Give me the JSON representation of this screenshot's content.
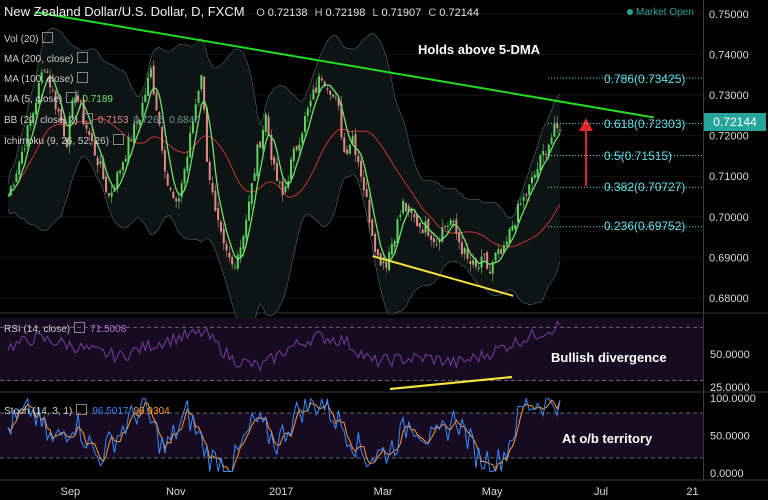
{
  "header": {
    "symbol": "New Zealand Dollar/U.S. Dollar, D, FXCM",
    "ohlc": {
      "o_label": "O",
      "o": "0.72138",
      "h_label": "H",
      "h": "0.72198",
      "l_label": "L",
      "l": "0.71907",
      "c_label": "C",
      "c": "0.72144"
    },
    "market_status": "Market Open"
  },
  "indicators": {
    "vol": "Vol (20)",
    "ma200": "MA (200, close)",
    "ma100": "MA (100, close)",
    "ma5": "MA (5, close)",
    "ma5_value": "0.7189",
    "bb": "BB (20, close, 2)",
    "bb_value": "0.7153",
    "bb_value2": "0.7265",
    "bb_value3": "0.6840",
    "ichimoku": "Ichimoku (9, 26, 52, 26)",
    "rsi": "RSI (14, close)",
    "rsi_value": "71.5008",
    "stoch": "Stoch (14, 3, 1)",
    "stoch_k": "96.5017",
    "stoch_d": "96.9304"
  },
  "annotations": {
    "holds": "Holds above 5-DMA",
    "bullish": "Bullish divergence",
    "ob": "At o/b territory"
  },
  "fib_levels": [
    {
      "label": "0.786(0.73425)",
      "value": 0.73425
    },
    {
      "label": "0.618(0.72303)",
      "value": 0.72303
    },
    {
      "label": "0.5(0.71515)",
      "value": 0.71515
    },
    {
      "label": "0.382(0.70727)",
      "value": 0.70727
    },
    {
      "label": "0.236(0.69752)",
      "value": 0.69752
    }
  ],
  "last_price": "0.72144",
  "colors": {
    "background": "#000000",
    "bull": "#5fd35f",
    "bear": "#e08a8a",
    "ma5": "#6ee36e",
    "ma_red": "#d23a3a",
    "bb": "#6e9b9b",
    "trend_green": "#22dd22",
    "trend_yellow": "#f5e23a",
    "rsi_line": "#7a3da0",
    "stoch_k": "#3b8bff",
    "stoch_d": "#ff9a2e",
    "fib": "#5ee0e6",
    "arrow": "#e0282c",
    "accent": "#26a69a"
  },
  "chart_data": [
    {
      "type": "candlestick",
      "title": "New Zealand Dollar/U.S. Dollar, D, FXCM",
      "x_ticks": [
        "Sep",
        "Nov",
        "2017",
        "Mar",
        "May",
        "Jul",
        "21"
      ],
      "y_ticks": [
        "0.75000",
        "0.74000",
        "0.73000",
        "0.72000",
        "0.71000",
        "0.70000",
        "0.69000",
        "0.68000"
      ],
      "ylim": [
        0.6765,
        0.752
      ],
      "close_path": [
        [
          0,
          0.705
        ],
        [
          5,
          0.716
        ],
        [
          9,
          0.726
        ],
        [
          13,
          0.738
        ],
        [
          17,
          0.728
        ],
        [
          21,
          0.719
        ],
        [
          24,
          0.731
        ],
        [
          28,
          0.722
        ],
        [
          32,
          0.714
        ],
        [
          36,
          0.705
        ],
        [
          39,
          0.71
        ],
        [
          43,
          0.718
        ],
        [
          47,
          0.725
        ],
        [
          51,
          0.736
        ],
        [
          54,
          0.723
        ],
        [
          57,
          0.708
        ],
        [
          60,
          0.702
        ],
        [
          64,
          0.715
        ],
        [
          67,
          0.728
        ],
        [
          69,
          0.736
        ],
        [
          71,
          0.715
        ],
        [
          74,
          0.7
        ],
        [
          77,
          0.692
        ],
        [
          80,
          0.688
        ],
        [
          83,
          0.693
        ],
        [
          86,
          0.703
        ],
        [
          89,
          0.716
        ],
        [
          92,
          0.725
        ],
        [
          95,
          0.711
        ],
        [
          98,
          0.705
        ],
        [
          101,
          0.713
        ],
        [
          105,
          0.722
        ],
        [
          109,
          0.73
        ],
        [
          112,
          0.735
        ],
        [
          115,
          0.732
        ],
        [
          118,
          0.726
        ],
        [
          120,
          0.716
        ],
        [
          123,
          0.72
        ],
        [
          126,
          0.711
        ],
        [
          129,
          0.7
        ],
        [
          132,
          0.69
        ],
        [
          135,
          0.689
        ],
        [
          138,
          0.696
        ],
        [
          141,
          0.703
        ],
        [
          144,
          0.7
        ],
        [
          147,
          0.698
        ],
        [
          150,
          0.697
        ],
        [
          153,
          0.694
        ],
        [
          155,
          0.697
        ],
        [
          158,
          0.699
        ],
        [
          161,
          0.694
        ],
        [
          164,
          0.689
        ],
        [
          167,
          0.687
        ],
        [
          170,
          0.689
        ],
        [
          172,
          0.686
        ],
        [
          174,
          0.69
        ],
        [
          177,
          0.691
        ],
        [
          180,
          0.698
        ],
        [
          183,
          0.703
        ],
        [
          186,
          0.707
        ],
        [
          189,
          0.712
        ],
        [
          192,
          0.717
        ],
        [
          195,
          0.721
        ],
        [
          197,
          0.7214
        ]
      ],
      "indicators": [
        "MA 5",
        "MA 100",
        "Bollinger Bands",
        "Ichimoku cloud"
      ],
      "trendlines": [
        {
          "name": "resistance",
          "from": [
            0.05,
            0.7505
          ],
          "to": [
            0.93,
            0.7245
          ]
        },
        {
          "name": "support",
          "from": [
            0.53,
            0.6903
          ],
          "to": [
            0.73,
            0.6805
          ]
        }
      ]
    },
    {
      "type": "line",
      "title": "RSI (14, close)",
      "y_ticks": [
        "50.0000",
        "25.0000"
      ],
      "ylim": [
        22,
        80
      ],
      "last_value": 71.5008,
      "x": [
        0,
        10,
        20,
        30,
        40,
        50,
        60,
        70,
        80,
        90,
        100,
        110,
        120,
        130,
        140,
        150,
        160,
        170,
        180,
        190,
        197
      ],
      "values": [
        55,
        62,
        58,
        52,
        48,
        56,
        62,
        66,
        46,
        40,
        54,
        63,
        60,
        44,
        46,
        47,
        43,
        49,
        58,
        66,
        71.5
      ]
    },
    {
      "type": "line",
      "title": "Stoch (14, 3, 1)",
      "y_ticks": [
        "100.0000",
        "50.0000",
        "0.0000"
      ],
      "ylim": [
        0,
        100
      ],
      "series": [
        {
          "name": "%K",
          "last_value": 96.5017
        },
        {
          "name": "%D",
          "last_value": 96.9304
        }
      ],
      "x": [
        0,
        8,
        16,
        24,
        32,
        40,
        48,
        56,
        64,
        72,
        80,
        88,
        96,
        104,
        112,
        120,
        128,
        136,
        144,
        152,
        160,
        168,
        176,
        184,
        192,
        197
      ],
      "values": [
        60,
        85,
        40,
        70,
        20,
        55,
        90,
        30,
        80,
        20,
        10,
        70,
        40,
        85,
        95,
        60,
        20,
        30,
        70,
        40,
        75,
        20,
        15,
        90,
        95,
        96.5
      ]
    }
  ]
}
